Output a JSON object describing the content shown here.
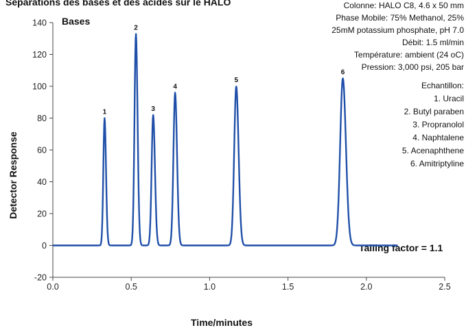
{
  "title_partial": "Séparations des bases et des acides sur le HALO",
  "conditions": [
    "Colonne: HALO C8, 4.6 x 50 mm",
    "Phase Mobile: 75% Methanol, 25%",
    "25mM potassium phosphate, pH 7.0",
    "Débit: 1.5 ml/min",
    "Température: ambient (24 oC)",
    "Pression: 3,000 psi, 205 bar"
  ],
  "sample_header": "Echantillon:",
  "sample_list": [
    "1. Uracil",
    "2. Butyl paraben",
    "3. Propranolol",
    "4. Naphtalene",
    "5. Acenaphthene",
    "6. Amitriptyline"
  ],
  "chart_data": {
    "type": "line",
    "panel_label": "Bases",
    "xlabel": "Time/minutes",
    "ylabel": "Detector Response",
    "xlim": [
      0.0,
      2.5
    ],
    "ylim": [
      -20,
      140
    ],
    "x_ticks": [
      "0.0",
      "0.5",
      "1.0",
      "1.5",
      "2.0",
      "2.5"
    ],
    "y_ticks": [
      "-20",
      "0",
      "20",
      "40",
      "60",
      "80",
      "100",
      "120",
      "140"
    ],
    "grid": false,
    "baseline": 0,
    "peaks": [
      {
        "label": "1",
        "x": 0.33,
        "y": 80
      },
      {
        "label": "2",
        "x": 0.53,
        "y": 133
      },
      {
        "label": "3",
        "x": 0.64,
        "y": 82
      },
      {
        "label": "4",
        "x": 0.78,
        "y": 96
      },
      {
        "label": "5",
        "x": 1.17,
        "y": 100
      },
      {
        "label": "6",
        "x": 1.85,
        "y": 105
      }
    ],
    "annotation": "Tailing factor = 1.1",
    "line_color": "#1f4fa8"
  }
}
